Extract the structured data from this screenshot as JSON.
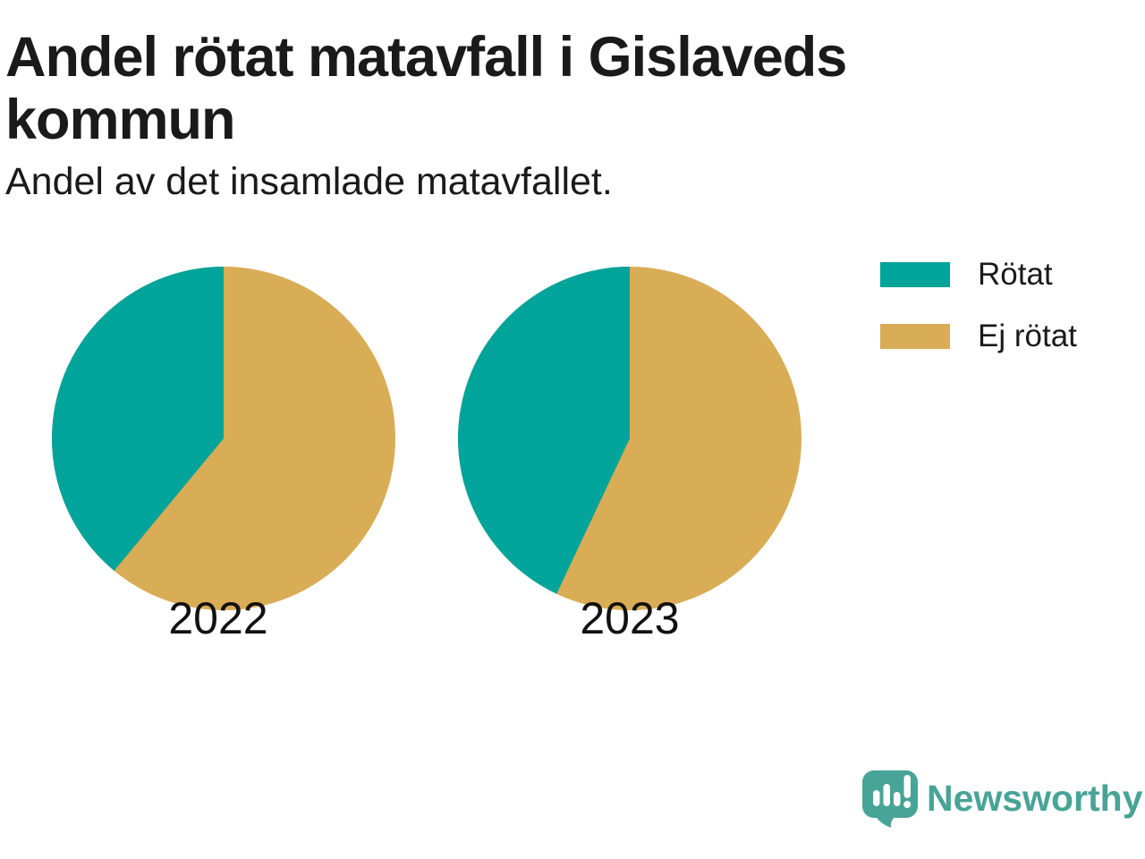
{
  "header": {
    "title": "Andel rötat matavfall i Gislaveds kommun",
    "subtitle": "Andel av det insamlade matavfallet."
  },
  "legend": {
    "position": "top-right",
    "items": [
      {
        "label": "Rötat",
        "color": "#00a49a"
      },
      {
        "label": "Ej rötat",
        "color": "#d9ac56"
      }
    ]
  },
  "chart_data": {
    "type": "pie",
    "unit": "percent",
    "start_angle": "12-o-clock",
    "slice_order_clockwise": [
      "Ej rötat",
      "Rötat"
    ],
    "categories": [
      "Rötat",
      "Ej rötat"
    ],
    "colors": {
      "Rötat": "#00a49a",
      "Ej rötat": "#d9ac56"
    },
    "series": [
      {
        "label": "2022",
        "slices": [
          {
            "name": "Rötat",
            "value": 39,
            "color": "#00a49a"
          },
          {
            "name": "Ej rötat",
            "value": 61,
            "color": "#d9ac56"
          }
        ]
      },
      {
        "label": "2023",
        "slices": [
          {
            "name": "Rötat",
            "value": 43,
            "color": "#00a49a"
          },
          {
            "name": "Ej rötat",
            "value": 57,
            "color": "#d9ac56"
          }
        ]
      }
    ]
  },
  "branding": {
    "logo_text": "Newsworthy",
    "logo_color": "#47a497",
    "logo_icon": "speech-bubble-bar-chart-icon"
  }
}
